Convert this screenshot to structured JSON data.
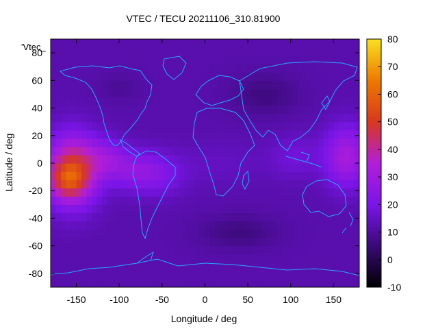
{
  "chart_data": {
    "type": "heatmap",
    "title": "VTEC / TECU 20211106_310.81900",
    "xlabel": "Longitude / deg",
    "ylabel": "Latitude / deg",
    "xlim": [
      -180,
      180
    ],
    "ylim": [
      -90,
      90
    ],
    "xticks": [
      -150,
      -100,
      -50,
      0,
      50,
      100,
      150
    ],
    "yticks": [
      -80,
      -60,
      -40,
      -20,
      0,
      20,
      40,
      60,
      80
    ],
    "colorbar": {
      "min": -10,
      "max": 80,
      "ticks": [
        -10,
        0,
        10,
        20,
        30,
        40,
        50,
        60,
        70,
        80
      ],
      "palette_stops": [
        "#000000",
        "#3a0a78",
        "#7a15e8",
        "#b21ed8",
        "#d83820",
        "#ec7a00",
        "#fae024"
      ]
    },
    "legend": {
      "label": "'Vtec_",
      "placement": "top-left"
    },
    "overlay": "coastlines",
    "features": [
      {
        "lon": -155,
        "lat": -5,
        "lon_radius": 30,
        "lat_radius": 25,
        "value": 36
      },
      {
        "lon": -160,
        "lat": -12,
        "lon_radius": 22,
        "lat_radius": 12,
        "value": 16
      },
      {
        "lon": -115,
        "lat": 4,
        "lon_radius": 25,
        "lat_radius": 14,
        "value": 12
      },
      {
        "lon": -85,
        "lat": -5,
        "lon_radius": 30,
        "lat_radius": 14,
        "value": 10
      },
      {
        "lon": -55,
        "lat": -8,
        "lon_radius": 32,
        "lat_radius": 16,
        "value": 9
      },
      {
        "lon": 165,
        "lat": 5,
        "lon_radius": 25,
        "lat_radius": 22,
        "value": 20
      },
      {
        "lon": 105,
        "lat": 5,
        "lon_radius": 30,
        "lat_radius": 16,
        "value": 6
      },
      {
        "lon": 20,
        "lat": 0,
        "lon_radius": 50,
        "lat_radius": 16,
        "value": 3
      },
      {
        "lon": 70,
        "lat": 50,
        "lon_radius": 40,
        "lat_radius": 15,
        "value": -6
      },
      {
        "lon": 40,
        "lat": -50,
        "lon_radius": 45,
        "lat_radius": 12,
        "value": -6
      },
      {
        "lon": -100,
        "lat": 55,
        "lon_radius": 25,
        "lat_radius": 10,
        "value": -3
      }
    ],
    "background_value": 12
  }
}
